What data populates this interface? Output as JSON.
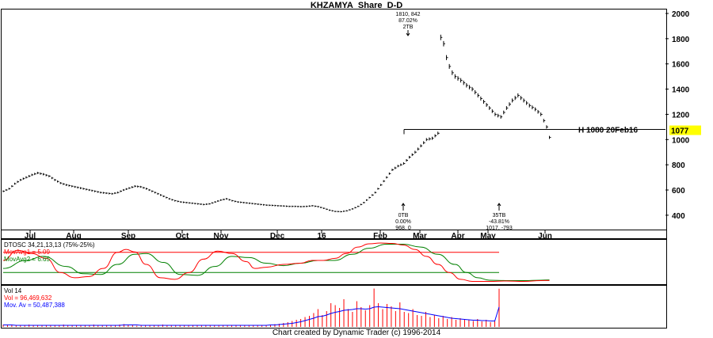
{
  "title": "KHZAMYA_Share_D-D",
  "footer": "Chart created by Dynamic Trader  (c) 1996-2014",
  "colors": {
    "price": "#000000",
    "osc_fast": "#ff0000",
    "osc_slow": "#008000",
    "osc_band_upper": "#ff0000",
    "osc_band_lower": "#008000",
    "vol_bars": "#ff0000",
    "vol_avg": "#0000ff",
    "highlight": "#ffff00"
  },
  "chart_data": [
    {
      "type": "line",
      "panel": "price",
      "x_ticks": [
        "Jul",
        "Aug",
        "Sep",
        "Oct",
        "Nov",
        "Dec",
        "16",
        "Feb",
        "Mar",
        "Apr",
        "May",
        "Jun"
      ],
      "y_ticks": [
        400,
        600,
        800,
        1000,
        1200,
        1400,
        1600,
        1800,
        2000
      ],
      "ylim": [
        280,
        2000
      ],
      "grid": false,
      "series": [
        {
          "points": [
            [
              0,
              590
            ],
            [
              2,
              610
            ],
            [
              4,
              650
            ],
            [
              6,
              680
            ],
            [
              8,
              700
            ],
            [
              10,
              720
            ],
            [
              12,
              735
            ],
            [
              14,
              725
            ],
            [
              16,
              710
            ],
            [
              18,
              680
            ],
            [
              20,
              655
            ],
            [
              22,
              640
            ],
            [
              24,
              630
            ],
            [
              26,
              620
            ],
            [
              28,
              610
            ],
            [
              30,
              600
            ],
            [
              32,
              590
            ],
            [
              34,
              580
            ],
            [
              36,
              575
            ],
            [
              38,
              570
            ],
            [
              40,
              580
            ],
            [
              42,
              600
            ],
            [
              44,
              615
            ],
            [
              46,
              630
            ],
            [
              48,
              625
            ],
            [
              50,
              610
            ],
            [
              52,
              590
            ],
            [
              54,
              570
            ],
            [
              56,
              550
            ],
            [
              58,
              530
            ],
            [
              60,
              515
            ],
            [
              62,
              505
            ],
            [
              64,
              500
            ],
            [
              66,
              495
            ],
            [
              68,
              490
            ],
            [
              70,
              485
            ],
            [
              72,
              490
            ],
            [
              74,
              505
            ],
            [
              76,
              520
            ],
            [
              78,
              530
            ],
            [
              80,
              515
            ],
            [
              82,
              505
            ],
            [
              84,
              500
            ],
            [
              86,
              495
            ],
            [
              88,
              490
            ],
            [
              90,
              485
            ],
            [
              92,
              480
            ],
            [
              94,
              478
            ],
            [
              96,
              475
            ],
            [
              98,
              473
            ],
            [
              100,
              470
            ],
            [
              102,
              470
            ],
            [
              104,
              468
            ],
            [
              106,
              470
            ],
            [
              108,
              475
            ],
            [
              110,
              468
            ],
            [
              112,
              455
            ],
            [
              114,
              440
            ],
            [
              116,
              430
            ],
            [
              118,
              428
            ],
            [
              120,
              435
            ],
            [
              122,
              450
            ],
            [
              124,
              470
            ],
            [
              126,
              500
            ],
            [
              128,
              540
            ],
            [
              130,
              580
            ],
            [
              132,
              640
            ],
            [
              134,
              700
            ],
            [
              136,
              760
            ],
            [
              138,
              790
            ],
            [
              140,
              810
            ],
            [
              142,
              860
            ],
            [
              144,
              900
            ],
            [
              146,
              950
            ],
            [
              148,
              1000
            ],
            [
              150,
              1010
            ],
            [
              152,
              1050
            ],
            [
              153,
              1810
            ],
            [
              154,
              1760
            ],
            [
              155,
              1650
            ],
            [
              156,
              1580
            ],
            [
              157,
              1530
            ],
            [
              158,
              1500
            ],
            [
              160,
              1470
            ],
            [
              162,
              1430
            ],
            [
              164,
              1400
            ],
            [
              166,
              1350
            ],
            [
              168,
              1300
            ],
            [
              170,
              1250
            ],
            [
              172,
              1200
            ],
            [
              174,
              1180
            ],
            [
              176,
              1250
            ],
            [
              178,
              1310
            ],
            [
              180,
              1350
            ],
            [
              182,
              1310
            ],
            [
              184,
              1270
            ],
            [
              186,
              1240
            ],
            [
              188,
              1200
            ],
            [
              190,
              1100
            ],
            [
              191,
              1017
            ]
          ]
        }
      ],
      "reference_line": {
        "y": 1080,
        "label": "H 1080 20Feb16"
      },
      "current_price": "1077",
      "annotations": [
        {
          "lines": [
            "1810, 842",
            "87.02%",
            "2TB"
          ],
          "y": 1810
        },
        {
          "lines": [
            "0TB",
            "0.00%",
            "968, 0"
          ],
          "y": 968
        },
        {
          "lines": [
            "35TB",
            "-43.81%",
            "1017, -793"
          ],
          "y": 1017
        }
      ]
    },
    {
      "type": "line",
      "panel": "oscillator",
      "legend": [
        "DTOSC 34,21,13,13 (75%-25%)",
        "MovAvg1 = 5.09",
        "MovAvg2 = 6.65"
      ],
      "band_levels": [
        75,
        25
      ],
      "ylim": [
        0,
        100
      ],
      "series": [
        {
          "name": "MovAvg1",
          "points": [
            [
              0,
              55
            ],
            [
              5,
              80
            ],
            [
              10,
              72
            ],
            [
              15,
              60
            ],
            [
              20,
              25
            ],
            [
              25,
              12
            ],
            [
              30,
              15
            ],
            [
              35,
              35
            ],
            [
              40,
              75
            ],
            [
              43,
              82
            ],
            [
              46,
              76
            ],
            [
              50,
              45
            ],
            [
              55,
              12
            ],
            [
              60,
              8
            ],
            [
              65,
              25
            ],
            [
              70,
              58
            ],
            [
              75,
              78
            ],
            [
              80,
              72
            ],
            [
              85,
              52
            ],
            [
              88,
              35
            ],
            [
              92,
              38
            ],
            [
              98,
              45
            ],
            [
              104,
              48
            ],
            [
              108,
              55
            ],
            [
              112,
              55
            ],
            [
              116,
              60
            ],
            [
              120,
              72
            ],
            [
              124,
              88
            ],
            [
              128,
              96
            ],
            [
              132,
              98
            ],
            [
              136,
              97
            ],
            [
              140,
              93
            ],
            [
              144,
              82
            ],
            [
              148,
              65
            ],
            [
              152,
              45
            ],
            [
              156,
              25
            ],
            [
              160,
              8
            ],
            [
              164,
              3
            ],
            [
              170,
              3
            ],
            [
              176,
              4
            ],
            [
              182,
              3
            ],
            [
              188,
              5
            ],
            [
              191,
              5.09
            ]
          ]
        },
        {
          "name": "MovAvg2",
          "points": [
            [
              0,
              35
            ],
            [
              8,
              55
            ],
            [
              14,
              65
            ],
            [
              22,
              40
            ],
            [
              28,
              22
            ],
            [
              34,
              20
            ],
            [
              40,
              45
            ],
            [
              46,
              70
            ],
            [
              50,
              72
            ],
            [
              56,
              50
            ],
            [
              62,
              20
            ],
            [
              68,
              18
            ],
            [
              74,
              40
            ],
            [
              80,
              65
            ],
            [
              86,
              62
            ],
            [
              92,
              48
            ],
            [
              98,
              42
            ],
            [
              104,
              48
            ],
            [
              110,
              55
            ],
            [
              116,
              55
            ],
            [
              122,
              70
            ],
            [
              128,
              85
            ],
            [
              134,
              95
            ],
            [
              140,
              95
            ],
            [
              146,
              88
            ],
            [
              152,
              70
            ],
            [
              158,
              45
            ],
            [
              162,
              25
            ],
            [
              166,
              12
            ],
            [
              170,
              6
            ],
            [
              176,
              5
            ],
            [
              182,
              5
            ],
            [
              188,
              6
            ],
            [
              191,
              6.65
            ]
          ]
        }
      ]
    },
    {
      "type": "bar",
      "panel": "volume",
      "legend": [
        "Vol 14",
        "Vol = 96,469,632",
        "Mov. Av = 50,487,388"
      ],
      "ylim": [
        0,
        100000000
      ],
      "series": [
        {
          "name": "Vol",
          "values": [
            6,
            4,
            5,
            3,
            4,
            5,
            6,
            4,
            3,
            5,
            4,
            3,
            4,
            5,
            6,
            4,
            3,
            4,
            5,
            3,
            4,
            6,
            5,
            4,
            3,
            5,
            4,
            6,
            7,
            5,
            4,
            3,
            5,
            4,
            3,
            4,
            5,
            6,
            4,
            3,
            5,
            4,
            3,
            4,
            5,
            3,
            4,
            5,
            4,
            3,
            4,
            5,
            3,
            4,
            3,
            5,
            4,
            3,
            4,
            5,
            4,
            5,
            6,
            7,
            8,
            10,
            12,
            15,
            18,
            20,
            25,
            28,
            35,
            45,
            30,
            40,
            60,
            55,
            48,
            70,
            45,
            38,
            65,
            50,
            42,
            55,
            97,
            60,
            45,
            58,
            52,
            40,
            62,
            38,
            35,
            45,
            30,
            28,
            38,
            25,
            30,
            22,
            28,
            20,
            25,
            18,
            22,
            20,
            18,
            15,
            20,
            14,
            18,
            12,
            15,
            96.5
          ]
        },
        {
          "name": "Mov. Av",
          "values": [
            5,
            5,
            5,
            4,
            4,
            4,
            4,
            4,
            4,
            4,
            4,
            4,
            4,
            4,
            4,
            4,
            4,
            4,
            4,
            4,
            4,
            4,
            4,
            4,
            4,
            4,
            4,
            4,
            5,
            5,
            5,
            5,
            4,
            4,
            4,
            4,
            4,
            4,
            4,
            4,
            4,
            4,
            4,
            4,
            4,
            4,
            4,
            4,
            4,
            4,
            4,
            4,
            4,
            4,
            4,
            4,
            4,
            4,
            4,
            4,
            4,
            4,
            5,
            5,
            6,
            7,
            8,
            9,
            11,
            13,
            16,
            19,
            22,
            26,
            27,
            30,
            34,
            37,
            39,
            42,
            43,
            44,
            46,
            46,
            45,
            46,
            50,
            51,
            50,
            49,
            48,
            47,
            46,
            44,
            42,
            40,
            38,
            36,
            34,
            32,
            30,
            28,
            26,
            24,
            22,
            21,
            20,
            19,
            18,
            17,
            17,
            16,
            16,
            15,
            15,
            50.5
          ]
        }
      ]
    }
  ]
}
